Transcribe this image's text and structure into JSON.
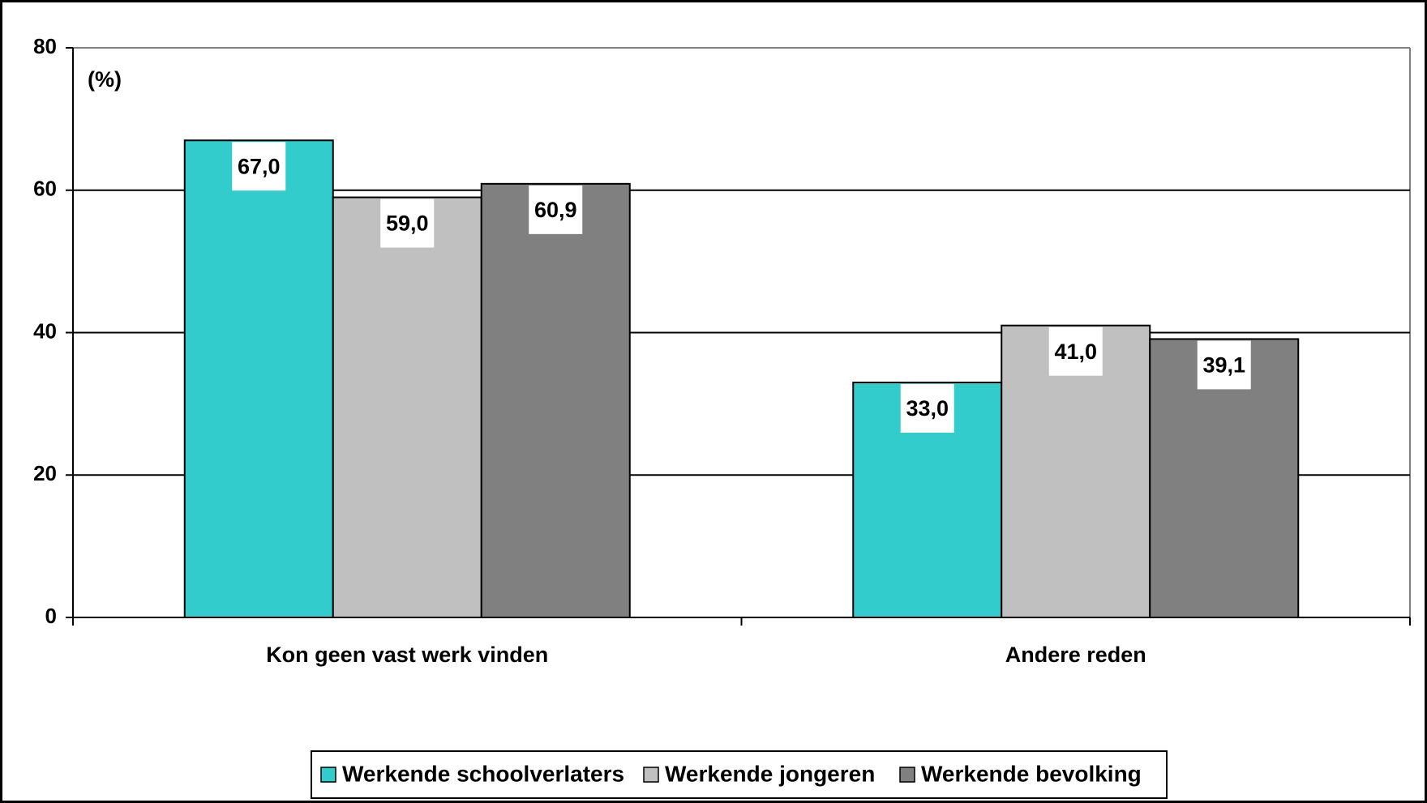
{
  "chart_data": {
    "type": "bar",
    "annotation": "(%)",
    "categories": [
      "Kon geen vast werk vinden",
      "Andere reden"
    ],
    "series": [
      {
        "name": "Werkende schoolverlaters",
        "color": "#33cccc",
        "values": [
          67.0,
          33.0
        ],
        "value_labels": [
          "67,0",
          "33,0"
        ]
      },
      {
        "name": "Werkende jongeren",
        "color": "#c0c0c0",
        "values": [
          59.0,
          41.0
        ],
        "value_labels": [
          "59,0",
          "41,0"
        ]
      },
      {
        "name": "Werkende bevolking",
        "color": "#808080",
        "values": [
          60.9,
          39.1
        ],
        "value_labels": [
          "60,9",
          "39,1"
        ]
      }
    ],
    "ylim": [
      0,
      80
    ],
    "yticks": [
      0,
      20,
      40,
      60,
      80
    ],
    "grid": true,
    "legend": "bottom"
  }
}
